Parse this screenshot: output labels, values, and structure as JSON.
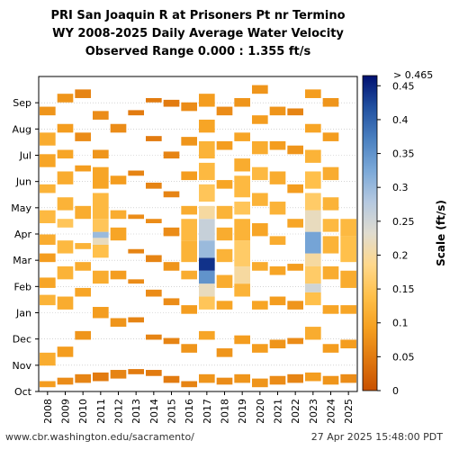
{
  "chart_data": {
    "type": "heatmap",
    "title_lines": [
      "PRI San Joaquin R at Prisoners Pt nr Termino",
      "WY 2008-2025 Daily Average Water Velocity",
      "Observed Range 0.000 : 1.355 ft/s"
    ],
    "x_categories": [
      "2008",
      "2009",
      "2010",
      "2011",
      "2012",
      "2013",
      "2014",
      "2015",
      "2016",
      "2017",
      "2018",
      "2019",
      "2020",
      "2021",
      "2022",
      "2023",
      "2024",
      "2025"
    ],
    "y_ticks": [
      "Oct",
      "Nov",
      "Dec",
      "Jan",
      "Feb",
      "Mar",
      "Apr",
      "May",
      "Jun",
      "Jul",
      "Aug",
      "Sep"
    ],
    "y_range_days": [
      0,
      365
    ],
    "colorbar": {
      "label": "Scale (ft/s)",
      "min": 0,
      "max": 0.465,
      "ticks": [
        "0",
        "0.05",
        "0.1",
        "0.15",
        "0.2",
        "0.25",
        "0.3",
        "0.35",
        "0.4",
        "0.45"
      ],
      "tick_values": [
        0,
        0.05,
        0.1,
        0.15,
        0.2,
        0.25,
        0.3,
        0.35,
        0.4,
        0.45
      ],
      "over_label": "> 0.465",
      "colors": [
        "#c85000",
        "#e0780f",
        "#f5a020",
        "#ffc04a",
        "#ffd88c",
        "#e0dcd0",
        "#b4c8e0",
        "#7aa8d8",
        "#4a80c0",
        "#2050a0",
        "#001070"
      ]
    },
    "years": [
      {
        "year": "2008",
        "segments": [
          [
            5,
            12,
            0.09
          ],
          [
            30,
            45,
            0.11
          ],
          [
            100,
            112,
            0.12
          ],
          [
            120,
            132,
            0.1
          ],
          [
            150,
            160,
            0.09
          ],
          [
            170,
            182,
            0.11
          ],
          [
            195,
            210,
            0.13
          ],
          [
            230,
            240,
            0.12
          ],
          [
            260,
            275,
            0.1
          ],
          [
            285,
            300,
            0.11
          ],
          [
            320,
            330,
            0.08
          ]
        ]
      },
      {
        "year": "2009",
        "segments": [
          [
            8,
            16,
            0.07
          ],
          [
            40,
            52,
            0.09
          ],
          [
            95,
            110,
            0.11
          ],
          [
            130,
            145,
            0.12
          ],
          [
            160,
            175,
            0.13
          ],
          [
            190,
            200,
            0.15
          ],
          [
            210,
            225,
            0.12
          ],
          [
            240,
            255,
            0.11
          ],
          [
            270,
            280,
            0.1
          ],
          [
            300,
            310,
            0.09
          ],
          [
            335,
            345,
            0.08
          ]
        ]
      },
      {
        "year": "2010",
        "segments": [
          [
            10,
            20,
            0.06
          ],
          [
            60,
            70,
            0.08
          ],
          [
            110,
            120,
            0.1
          ],
          [
            140,
            150,
            0.11
          ],
          [
            165,
            172,
            0.12
          ],
          [
            200,
            215,
            0.11
          ],
          [
            255,
            262,
            0.09
          ],
          [
            290,
            300,
            0.07
          ],
          [
            340,
            350,
            0.06
          ]
        ]
      },
      {
        "year": "2011",
        "segments": [
          [
            12,
            22,
            0.05
          ],
          [
            85,
            98,
            0.09
          ],
          [
            125,
            140,
            0.11
          ],
          [
            155,
            170,
            0.14
          ],
          [
            170,
            178,
            0.22
          ],
          [
            178,
            185,
            0.3
          ],
          [
            185,
            200,
            0.15
          ],
          [
            200,
            230,
            0.13
          ],
          [
            235,
            260,
            0.1
          ],
          [
            270,
            280,
            0.08
          ],
          [
            315,
            325,
            0.07
          ]
        ]
      },
      {
        "year": "2012",
        "segments": [
          [
            15,
            25,
            0.06
          ],
          [
            75,
            85,
            0.08
          ],
          [
            130,
            140,
            0.09
          ],
          [
            175,
            190,
            0.1
          ],
          [
            200,
            210,
            0.11
          ],
          [
            240,
            250,
            0.09
          ],
          [
            300,
            310,
            0.07
          ]
        ]
      },
      {
        "year": "2013",
        "segments": [
          [
            20,
            26,
            0.05
          ],
          [
            80,
            86,
            0.06
          ],
          [
            125,
            130,
            0.07
          ],
          [
            160,
            165,
            0.06
          ],
          [
            200,
            205,
            0.07
          ],
          [
            250,
            256,
            0.06
          ],
          [
            320,
            326,
            0.05
          ]
        ]
      },
      {
        "year": "2014",
        "segments": [
          [
            18,
            25,
            0.05
          ],
          [
            60,
            66,
            0.06
          ],
          [
            110,
            118,
            0.07
          ],
          [
            150,
            158,
            0.06
          ],
          [
            195,
            200,
            0.07
          ],
          [
            235,
            242,
            0.06
          ],
          [
            290,
            296,
            0.05
          ],
          [
            335,
            340,
            0.05
          ]
        ]
      },
      {
        "year": "2015",
        "segments": [
          [
            10,
            18,
            0.05
          ],
          [
            55,
            62,
            0.06
          ],
          [
            100,
            108,
            0.07
          ],
          [
            140,
            150,
            0.08
          ],
          [
            180,
            190,
            0.07
          ],
          [
            225,
            232,
            0.06
          ],
          [
            270,
            278,
            0.06
          ],
          [
            330,
            338,
            0.05
          ]
        ]
      },
      {
        "year": "2016",
        "segments": [
          [
            5,
            12,
            0.06
          ],
          [
            45,
            55,
            0.08
          ],
          [
            90,
            100,
            0.09
          ],
          [
            130,
            140,
            0.11
          ],
          [
            150,
            175,
            0.12
          ],
          [
            175,
            200,
            0.13
          ],
          [
            205,
            215,
            0.11
          ],
          [
            245,
            255,
            0.09
          ],
          [
            285,
            295,
            0.08
          ],
          [
            325,
            335,
            0.07
          ]
        ]
      },
      {
        "year": "2017",
        "segments": [
          [
            10,
            20,
            0.08
          ],
          [
            60,
            70,
            0.1
          ],
          [
            95,
            110,
            0.15
          ],
          [
            110,
            125,
            0.22
          ],
          [
            125,
            140,
            0.35
          ],
          [
            140,
            155,
            0.44
          ],
          [
            155,
            175,
            0.3
          ],
          [
            175,
            200,
            0.26
          ],
          [
            200,
            215,
            0.2
          ],
          [
            220,
            240,
            0.15
          ],
          [
            245,
            265,
            0.13
          ],
          [
            270,
            290,
            0.12
          ],
          [
            300,
            315,
            0.1
          ],
          [
            330,
            345,
            0.09
          ]
        ]
      },
      {
        "year": "2018",
        "segments": [
          [
            8,
            16,
            0.07
          ],
          [
            40,
            50,
            0.08
          ],
          [
            95,
            105,
            0.1
          ],
          [
            120,
            135,
            0.11
          ],
          [
            150,
            165,
            0.12
          ],
          [
            175,
            190,
            0.11
          ],
          [
            200,
            215,
            0.12
          ],
          [
            235,
            245,
            0.1
          ],
          [
            280,
            290,
            0.09
          ],
          [
            320,
            330,
            0.07
          ]
        ]
      },
      {
        "year": "2019",
        "segments": [
          [
            10,
            20,
            0.08
          ],
          [
            55,
            65,
            0.09
          ],
          [
            110,
            125,
            0.12
          ],
          [
            125,
            145,
            0.2
          ],
          [
            145,
            175,
            0.16
          ],
          [
            175,
            200,
            0.12
          ],
          [
            205,
            220,
            0.15
          ],
          [
            225,
            250,
            0.13
          ],
          [
            255,
            270,
            0.11
          ],
          [
            290,
            300,
            0.1
          ],
          [
            330,
            340,
            0.08
          ]
        ]
      },
      {
        "year": "2020",
        "segments": [
          [
            5,
            15,
            0.08
          ],
          [
            45,
            55,
            0.09
          ],
          [
            95,
            105,
            0.1
          ],
          [
            140,
            150,
            0.11
          ],
          [
            180,
            195,
            0.1
          ],
          [
            215,
            230,
            0.12
          ],
          [
            245,
            260,
            0.13
          ],
          [
            275,
            290,
            0.11
          ],
          [
            310,
            320,
            0.09
          ],
          [
            345,
            355,
            0.08
          ]
        ]
      },
      {
        "year": "2021",
        "segments": [
          [
            8,
            18,
            0.07
          ],
          [
            50,
            60,
            0.08
          ],
          [
            100,
            110,
            0.09
          ],
          [
            135,
            145,
            0.1
          ],
          [
            170,
            180,
            0.11
          ],
          [
            205,
            220,
            0.12
          ],
          [
            240,
            255,
            0.11
          ],
          [
            280,
            290,
            0.09
          ],
          [
            320,
            330,
            0.08
          ]
        ]
      },
      {
        "year": "2022",
        "segments": [
          [
            10,
            20,
            0.06
          ],
          [
            55,
            62,
            0.07
          ],
          [
            95,
            105,
            0.08
          ],
          [
            140,
            148,
            0.09
          ],
          [
            190,
            200,
            0.1
          ],
          [
            230,
            240,
            0.09
          ],
          [
            275,
            285,
            0.08
          ],
          [
            320,
            328,
            0.06
          ]
        ]
      },
      {
        "year": "2023",
        "segments": [
          [
            12,
            22,
            0.09
          ],
          [
            60,
            75,
            0.11
          ],
          [
            100,
            115,
            0.14
          ],
          [
            115,
            125,
            0.25
          ],
          [
            125,
            145,
            0.16
          ],
          [
            145,
            160,
            0.2
          ],
          [
            160,
            185,
            0.33
          ],
          [
            185,
            210,
            0.22
          ],
          [
            210,
            230,
            0.16
          ],
          [
            235,
            255,
            0.14
          ],
          [
            265,
            280,
            0.12
          ],
          [
            300,
            310,
            0.1
          ],
          [
            340,
            350,
            0.09
          ]
        ]
      },
      {
        "year": "2024",
        "segments": [
          [
            8,
            18,
            0.08
          ],
          [
            45,
            55,
            0.09
          ],
          [
            90,
            100,
            0.1
          ],
          [
            130,
            145,
            0.11
          ],
          [
            160,
            180,
            0.12
          ],
          [
            185,
            200,
            0.13
          ],
          [
            210,
            225,
            0.12
          ],
          [
            245,
            260,
            0.11
          ],
          [
            290,
            300,
            0.09
          ],
          [
            330,
            340,
            0.08
          ]
        ]
      },
      {
        "year": "2025",
        "segments": [
          [
            10,
            20,
            0.07
          ],
          [
            50,
            60,
            0.09
          ],
          [
            90,
            100,
            0.1
          ],
          [
            120,
            140,
            0.11
          ],
          [
            150,
            180,
            0.14
          ],
          [
            180,
            200,
            0.13
          ]
        ]
      }
    ]
  },
  "footer": {
    "left": "www.cbr.washington.edu/sacramento/",
    "right": "27 Apr 2025 15:48:00 PDT"
  }
}
